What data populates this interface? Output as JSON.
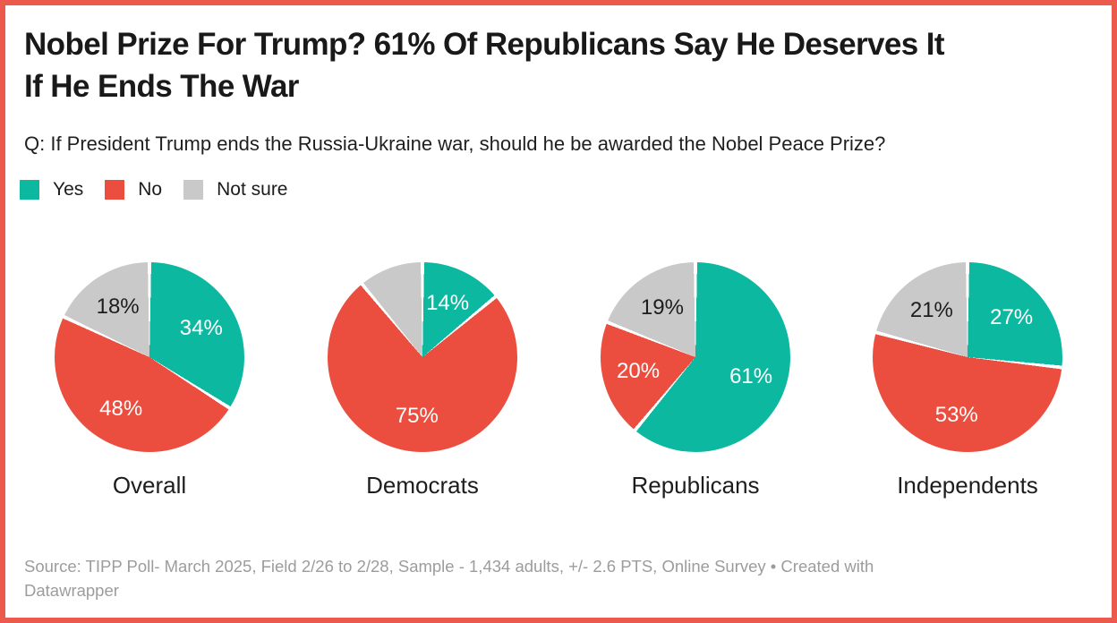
{
  "frame": {
    "border_color": "#eb5a4c",
    "background": "#ffffff"
  },
  "chart_data": {
    "type": "pie",
    "title": "Nobel Prize For Trump? 61% Of Republicans Say He Deserves It If He Ends The War",
    "subtitle": "Q: If President Trump ends the Russia-Ukraine war, should he be awarded the Nobel Peace Prize?",
    "layout": "four pie multiples, slices start at 12 o'clock and run clockwise in order Yes, No, Not sure; white hairline separators between slices",
    "legend": [
      {
        "label": "Yes",
        "color": "#0db8a0",
        "label_text_color": "#ffffff"
      },
      {
        "label": "No",
        "color": "#eb4e3f",
        "label_text_color": "#ffffff"
      },
      {
        "label": "Not sure",
        "color": "#c9c9c9",
        "label_text_color": "#1d1d1d"
      }
    ],
    "groups": [
      {
        "label": "Overall",
        "slices": [
          {
            "name": "Yes",
            "value": 34,
            "label": "34%"
          },
          {
            "name": "No",
            "value": 48,
            "label": "48%"
          },
          {
            "name": "Not sure",
            "value": 18,
            "label": "18%"
          }
        ]
      },
      {
        "label": "Democrats",
        "slices": [
          {
            "name": "Yes",
            "value": 14,
            "label": "14%"
          },
          {
            "name": "No",
            "value": 75,
            "label": "75%"
          },
          {
            "name": "Not sure",
            "value": 11,
            "label": null
          }
        ]
      },
      {
        "label": "Republicans",
        "slices": [
          {
            "name": "Yes",
            "value": 61,
            "label": "61%"
          },
          {
            "name": "No",
            "value": 20,
            "label": "20%"
          },
          {
            "name": "Not sure",
            "value": 19,
            "label": "19%"
          }
        ]
      },
      {
        "label": "Independents",
        "slices": [
          {
            "name": "Yes",
            "value": 27,
            "label": "27%"
          },
          {
            "name": "No",
            "value": 53,
            "label": "53%"
          },
          {
            "name": "Not sure",
            "value": 21,
            "label": "21%"
          }
        ]
      }
    ]
  },
  "footer": {
    "source": "Source: TIPP Poll- March 2025, Field 2/26 to 2/28, Sample - 1,434 adults, +/- 2.6 PTS, Online Survey",
    "separator": "•",
    "attribution": "Created with Datawrapper"
  }
}
